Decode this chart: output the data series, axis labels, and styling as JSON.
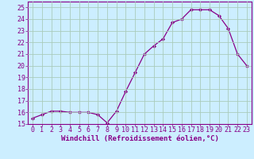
{
  "x": [
    0,
    1,
    2,
    3,
    4,
    5,
    6,
    7,
    8,
    9,
    10,
    11,
    12,
    13,
    14,
    15,
    16,
    17,
    18,
    19,
    20,
    21,
    22,
    23
  ],
  "y": [
    15.5,
    15.8,
    16.1,
    16.1,
    16.0,
    16.0,
    16.0,
    15.8,
    15.1,
    16.1,
    17.8,
    19.4,
    21.0,
    21.7,
    22.3,
    23.7,
    24.0,
    24.8,
    24.8,
    24.8,
    24.3,
    23.2,
    21.0,
    20.0
  ],
  "line_color": "#880088",
  "marker": "D",
  "marker_size": 2.2,
  "bg_color": "#cceeff",
  "grid_color": "#aaccbb",
  "xlabel": "Windchill (Refroidissement éolien,°C)",
  "ylabel": "",
  "xlim": [
    -0.5,
    23.5
  ],
  "ylim": [
    15,
    25.5
  ],
  "yticks": [
    15,
    16,
    17,
    18,
    19,
    20,
    21,
    22,
    23,
    24,
    25
  ],
  "xticks": [
    0,
    1,
    2,
    3,
    4,
    5,
    6,
    7,
    8,
    9,
    10,
    11,
    12,
    13,
    14,
    15,
    16,
    17,
    18,
    19,
    20,
    21,
    22,
    23
  ],
  "label_fontsize": 6.5,
  "tick_fontsize": 6.0
}
